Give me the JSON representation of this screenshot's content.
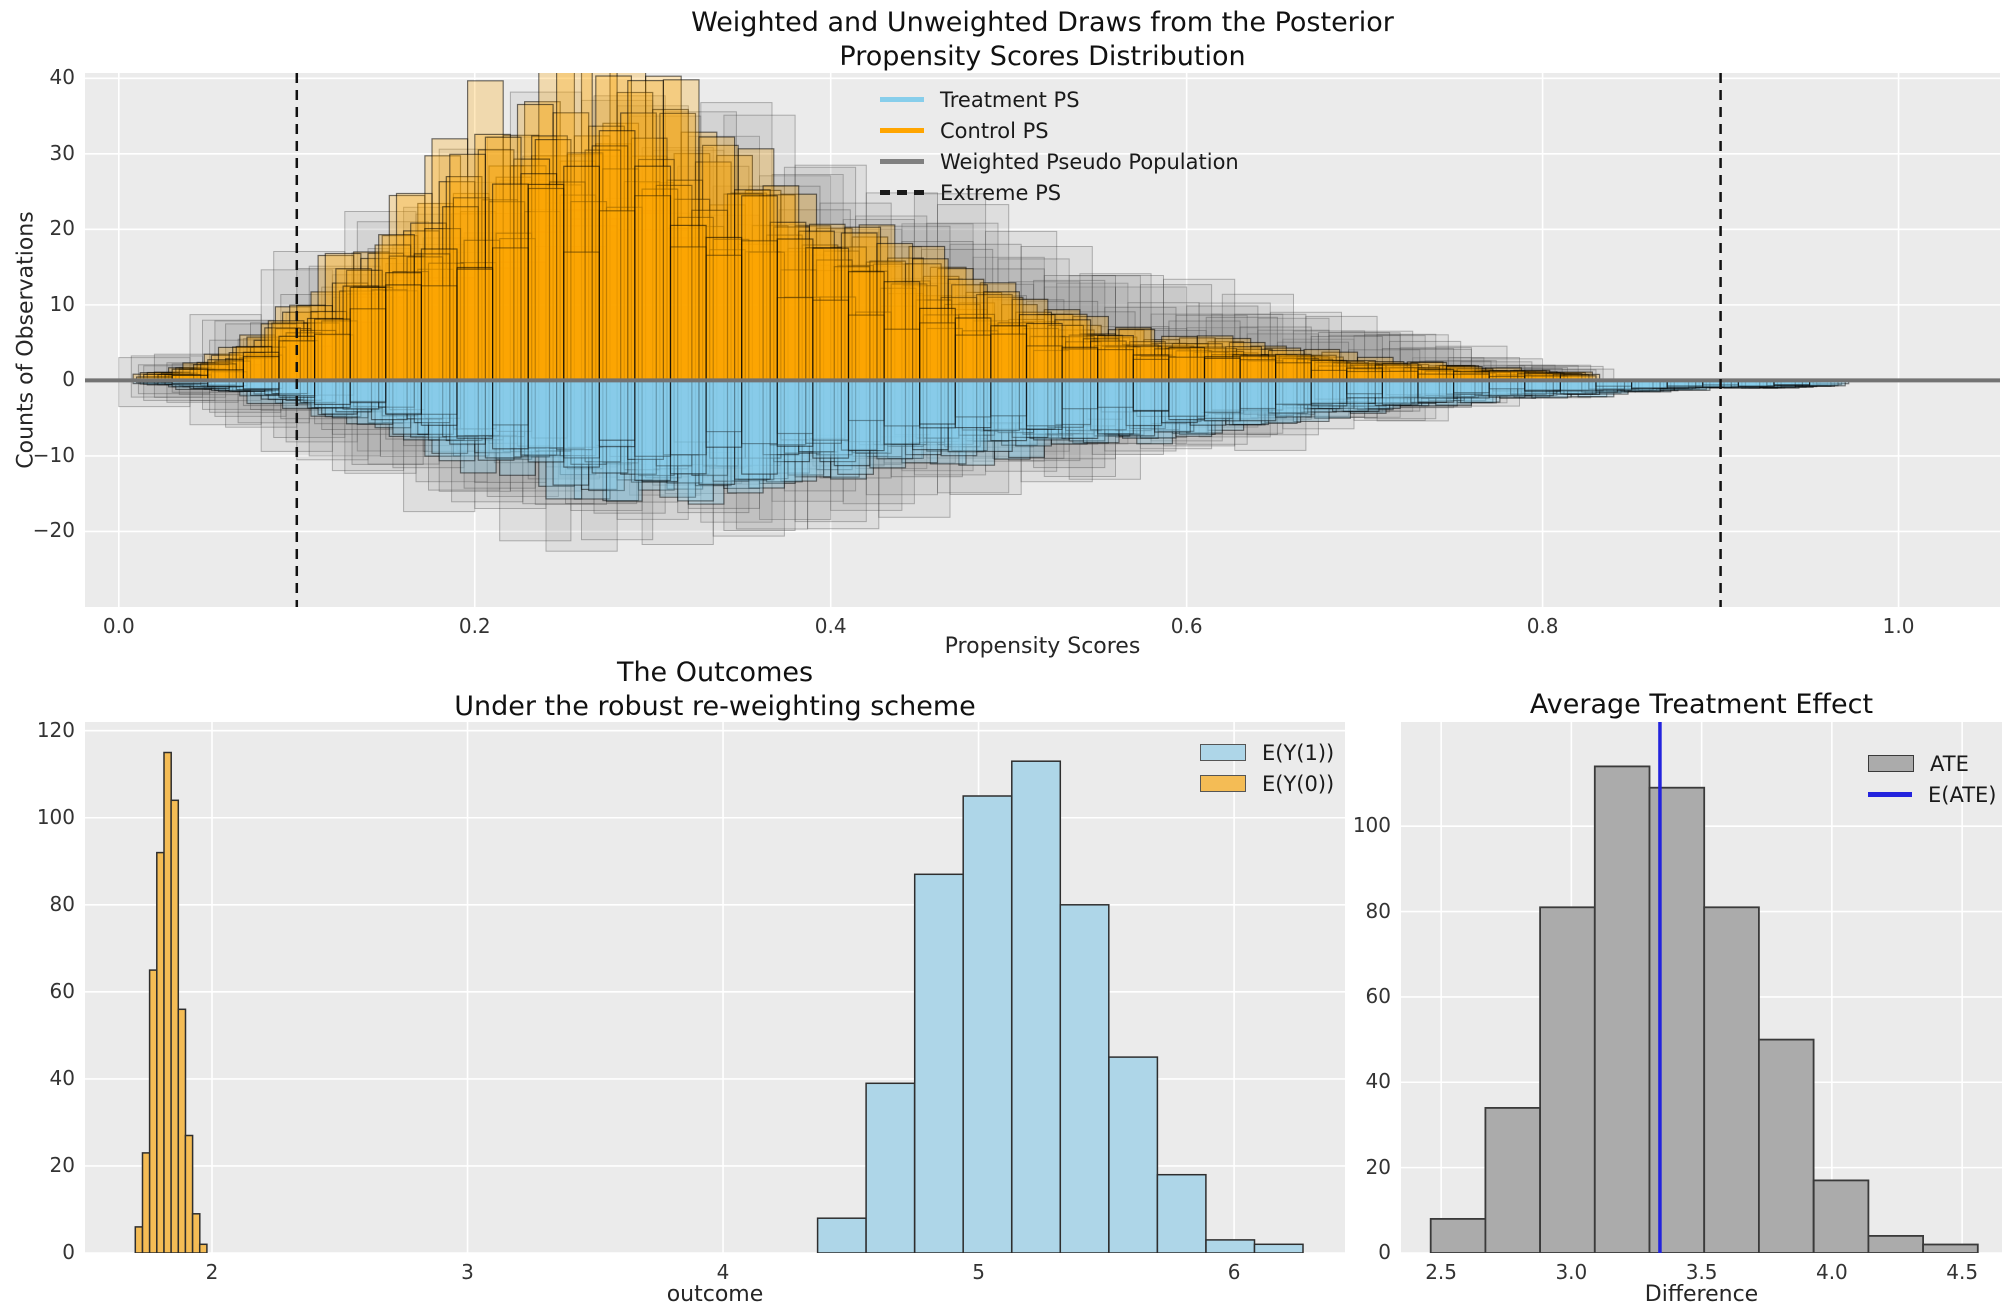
{
  "figure": {
    "background": "#ffffff",
    "axes_background": "#ebebeb",
    "grid_color": "#ffffff",
    "title_color": "#111111",
    "tick_color": "#333333"
  },
  "chart_data": [
    {
      "type": "mirrored-layered-histogram",
      "title_lines": [
        "Weighted and Unweighted Draws from the Posterior",
        "Propensity Scores Distribution"
      ],
      "xlabel": "Propensity Scores",
      "ylabel": "Counts of Observations",
      "xlim": [
        -0.019,
        1.057
      ],
      "ylim": [
        -30.0,
        40.7
      ],
      "xticks": [
        0.0,
        0.2,
        0.4,
        0.6,
        0.8,
        1.0
      ],
      "xtick_labels": [
        "0.0",
        "0.2",
        "0.4",
        "0.6",
        "0.8",
        "1.0"
      ],
      "yticks": [
        40,
        30,
        20,
        10,
        0,
        -10,
        -20
      ],
      "ytick_labels": [
        "40",
        "30",
        "20",
        "10",
        "0",
        "−10",
        "−20"
      ],
      "grid": true,
      "zero_line": {
        "y": 0,
        "color": "#737373",
        "width": 4
      },
      "extreme_ps": {
        "values": [
          0.1,
          0.9
        ],
        "color": "#111111",
        "width": 2.5,
        "dash": "10,7"
      },
      "legend": [
        {
          "label": "Treatment PS",
          "swatch": "line",
          "color": "#87CEEB"
        },
        {
          "label": "Control PS",
          "swatch": "line",
          "color": "#FFA500"
        },
        {
          "label": "Weighted Pseudo Population",
          "swatch": "line",
          "color": "#808080"
        },
        {
          "label": "Extreme PS",
          "swatch": "dashed-line",
          "color": "#1a1a1a"
        }
      ],
      "series": [
        {
          "name": "weighted-pseudo-population-above",
          "direction": 1,
          "fill": "#8a8a8a",
          "fill_opacity": 0.13,
          "stroke": "#3c3c3c",
          "stroke_opacity": 0.35,
          "stroke_width": 1,
          "bin_start": 0.02,
          "bin_width": 0.04,
          "envelope": [
            3,
            8,
            14,
            20,
            26,
            31,
            33,
            32,
            30,
            27,
            24,
            20,
            17,
            14,
            12,
            10,
            8,
            6,
            4,
            2
          ],
          "draws": [
            [
              -0.02,
              0.9,
              31
            ],
            [
              -0.013,
              1.0,
              42
            ],
            [
              -0.006,
              0.82,
              53
            ],
            [
              0,
              0.95,
              64
            ],
            [
              0.007,
              0.88,
              75
            ],
            [
              0.014,
              0.75,
              86
            ],
            [
              0.02,
              0.65,
              97
            ],
            [
              -0.009,
              0.7,
              108
            ],
            [
              0.01,
              0.6,
              119
            ]
          ]
        },
        {
          "name": "weighted-pseudo-population-below",
          "direction": -1,
          "fill": "#8a8a8a",
          "fill_opacity": 0.13,
          "stroke": "#3c3c3c",
          "stroke_opacity": 0.35,
          "stroke_width": 1,
          "bin_start": 0.02,
          "bin_width": 0.04,
          "envelope": [
            3,
            6,
            9,
            12,
            15,
            17.5,
            19,
            19.5,
            18.5,
            17,
            15,
            13.5,
            12,
            10.5,
            9,
            7.5,
            6,
            4.5,
            3,
            2
          ],
          "draws": [
            [
              -0.02,
              0.95,
              41
            ],
            [
              -0.013,
              0.85,
              52
            ],
            [
              -0.006,
              1.0,
              63
            ],
            [
              0,
              0.9,
              74
            ],
            [
              0.007,
              0.97,
              85
            ],
            [
              0.014,
              0.8,
              96
            ],
            [
              0.02,
              0.7,
              107
            ],
            [
              -0.009,
              0.75,
              118
            ],
            [
              0.01,
              0.62,
              129
            ]
          ]
        },
        {
          "name": "control-ps",
          "direction": 1,
          "fill": "#FFA500",
          "fill_opacity": 0.26,
          "stroke": "#000000",
          "stroke_opacity": 0.55,
          "stroke_width": 1.2,
          "bin_start": 0.02,
          "bin_width": 0.02,
          "envelope": [
            1,
            2,
            4,
            7,
            10,
            14,
            18,
            23,
            27,
            31,
            35,
            38,
            37,
            35,
            33,
            30,
            28,
            25,
            22,
            19,
            17,
            15,
            13,
            11,
            9.5,
            8,
            7,
            6,
            5.5,
            5,
            4.5,
            4,
            3.5,
            3,
            2.5,
            2,
            1.8,
            1.5,
            1.2,
            1
          ],
          "draws": [
            [
              -0.012,
              0.8,
              11
            ],
            [
              -0.008,
              0.95,
              22
            ],
            [
              -0.004,
              1.0,
              33
            ],
            [
              0,
              0.9,
              44
            ],
            [
              0.004,
              0.97,
              55
            ],
            [
              0.008,
              0.85,
              66
            ],
            [
              0.012,
              0.74,
              77
            ],
            [
              -0.006,
              0.66,
              88
            ],
            [
              0.002,
              0.88,
              99
            ],
            [
              0.006,
              0.93,
              110
            ],
            [
              -0.01,
              0.58,
              121
            ],
            [
              0.01,
              0.7,
              132
            ]
          ]
        },
        {
          "name": "treatment-ps",
          "direction": -1,
          "fill": "#87CEEB",
          "fill_opacity": 0.3,
          "stroke": "#000000",
          "stroke_opacity": 0.5,
          "stroke_width": 1.2,
          "bin_start": 0.02,
          "bin_width": 0.02,
          "envelope": [
            0.5,
            1,
            1.5,
            2.5,
            3.5,
            4.5,
            5.5,
            7,
            8.5,
            10,
            11.5,
            12.5,
            13.5,
            14,
            14,
            13.5,
            13,
            12.5,
            12,
            11,
            10.5,
            10,
            9.5,
            9,
            8.5,
            8,
            7.5,
            7,
            6.5,
            6,
            5.5,
            5,
            4.5,
            4,
            3.5,
            3,
            2.8,
            2.5,
            2.2,
            2,
            1.8,
            1.5,
            1.3,
            1.1,
            1,
            0.9,
            0.8
          ],
          "draws": [
            [
              -0.012,
              0.85,
              21
            ],
            [
              -0.008,
              1.0,
              32
            ],
            [
              -0.004,
              0.92,
              43
            ],
            [
              0,
              0.97,
              54
            ],
            [
              0.004,
              0.88,
              65
            ],
            [
              0.008,
              0.8,
              76
            ],
            [
              0.012,
              0.72,
              87
            ],
            [
              -0.006,
              0.95,
              98
            ],
            [
              0.002,
              0.9,
              109
            ],
            [
              0.006,
              0.82,
              120
            ],
            [
              -0.01,
              0.65,
              131
            ],
            [
              0.01,
              0.75,
              142
            ]
          ]
        }
      ]
    },
    {
      "type": "histogram",
      "title_lines": [
        "The Outcomes",
        "Under the robust re-weighting scheme"
      ],
      "xlabel": "outcome",
      "xlim": [
        1.503,
        6.434
      ],
      "ylim": [
        0,
        122
      ],
      "xticks": [
        2,
        3,
        4,
        5,
        6
      ],
      "xtick_labels": [
        "2",
        "3",
        "4",
        "5",
        "6"
      ],
      "yticks": [
        0,
        20,
        40,
        60,
        80,
        100,
        120
      ],
      "ytick_labels": [
        "0",
        "20",
        "40",
        "60",
        "80",
        "100",
        "120"
      ],
      "grid": true,
      "legend": [
        {
          "label": "E(Y(1))",
          "swatch": "patch",
          "color": "#aed6e8",
          "edge": "#555555"
        },
        {
          "label": "E(Y(0))",
          "swatch": "patch",
          "color": "#f4bc55",
          "edge": "#555555"
        }
      ],
      "series": [
        {
          "name": "E(Y(1))",
          "fill": "#aed6e8",
          "stroke": "#2e2e2e",
          "stroke_width": 1.5,
          "bin_start": 4.37,
          "bin_width": 0.19,
          "counts": [
            8,
            39,
            87,
            105,
            113,
            80,
            45,
            18,
            3,
            2
          ]
        },
        {
          "name": "E(Y(0))",
          "fill": "#f4bc55",
          "stroke": "#2e2e2e",
          "stroke_width": 1.5,
          "bin_start": 1.7,
          "bin_width": 0.028,
          "counts": [
            6,
            23,
            65,
            92,
            115,
            104,
            56,
            27,
            9,
            2
          ]
        }
      ]
    },
    {
      "type": "histogram",
      "title_lines": [
        "Average Treatment Effect"
      ],
      "xlabel": "Difference",
      "xlim": [
        2.346,
        4.653
      ],
      "ylim": [
        0,
        124.4
      ],
      "xticks": [
        2.5,
        3.0,
        3.5,
        4.0,
        4.5
      ],
      "xtick_labels": [
        "2.5",
        "3.0",
        "3.5",
        "4.0",
        "4.5"
      ],
      "yticks": [
        0,
        20,
        40,
        60,
        80,
        100
      ],
      "ytick_labels": [
        "0",
        "20",
        "40",
        "60",
        "80",
        "100"
      ],
      "grid": true,
      "legend": [
        {
          "label": "ATE",
          "swatch": "patch",
          "color": "#ababab",
          "edge": "#3a3a3a"
        },
        {
          "label": "E(ATE)",
          "swatch": "line",
          "color": "#2323dd"
        }
      ],
      "series": [
        {
          "name": "ATE",
          "fill": "#ababab",
          "stroke": "#3a3a3a",
          "stroke_width": 1.8,
          "bin_start": 2.46,
          "bin_width": 0.21,
          "counts": [
            8,
            34,
            81,
            114,
            109,
            81,
            50,
            17,
            4,
            2
          ]
        }
      ],
      "vline": {
        "name": "E(ATE)",
        "x": 3.34,
        "color": "#2323dd",
        "width": 3.5
      }
    }
  ]
}
